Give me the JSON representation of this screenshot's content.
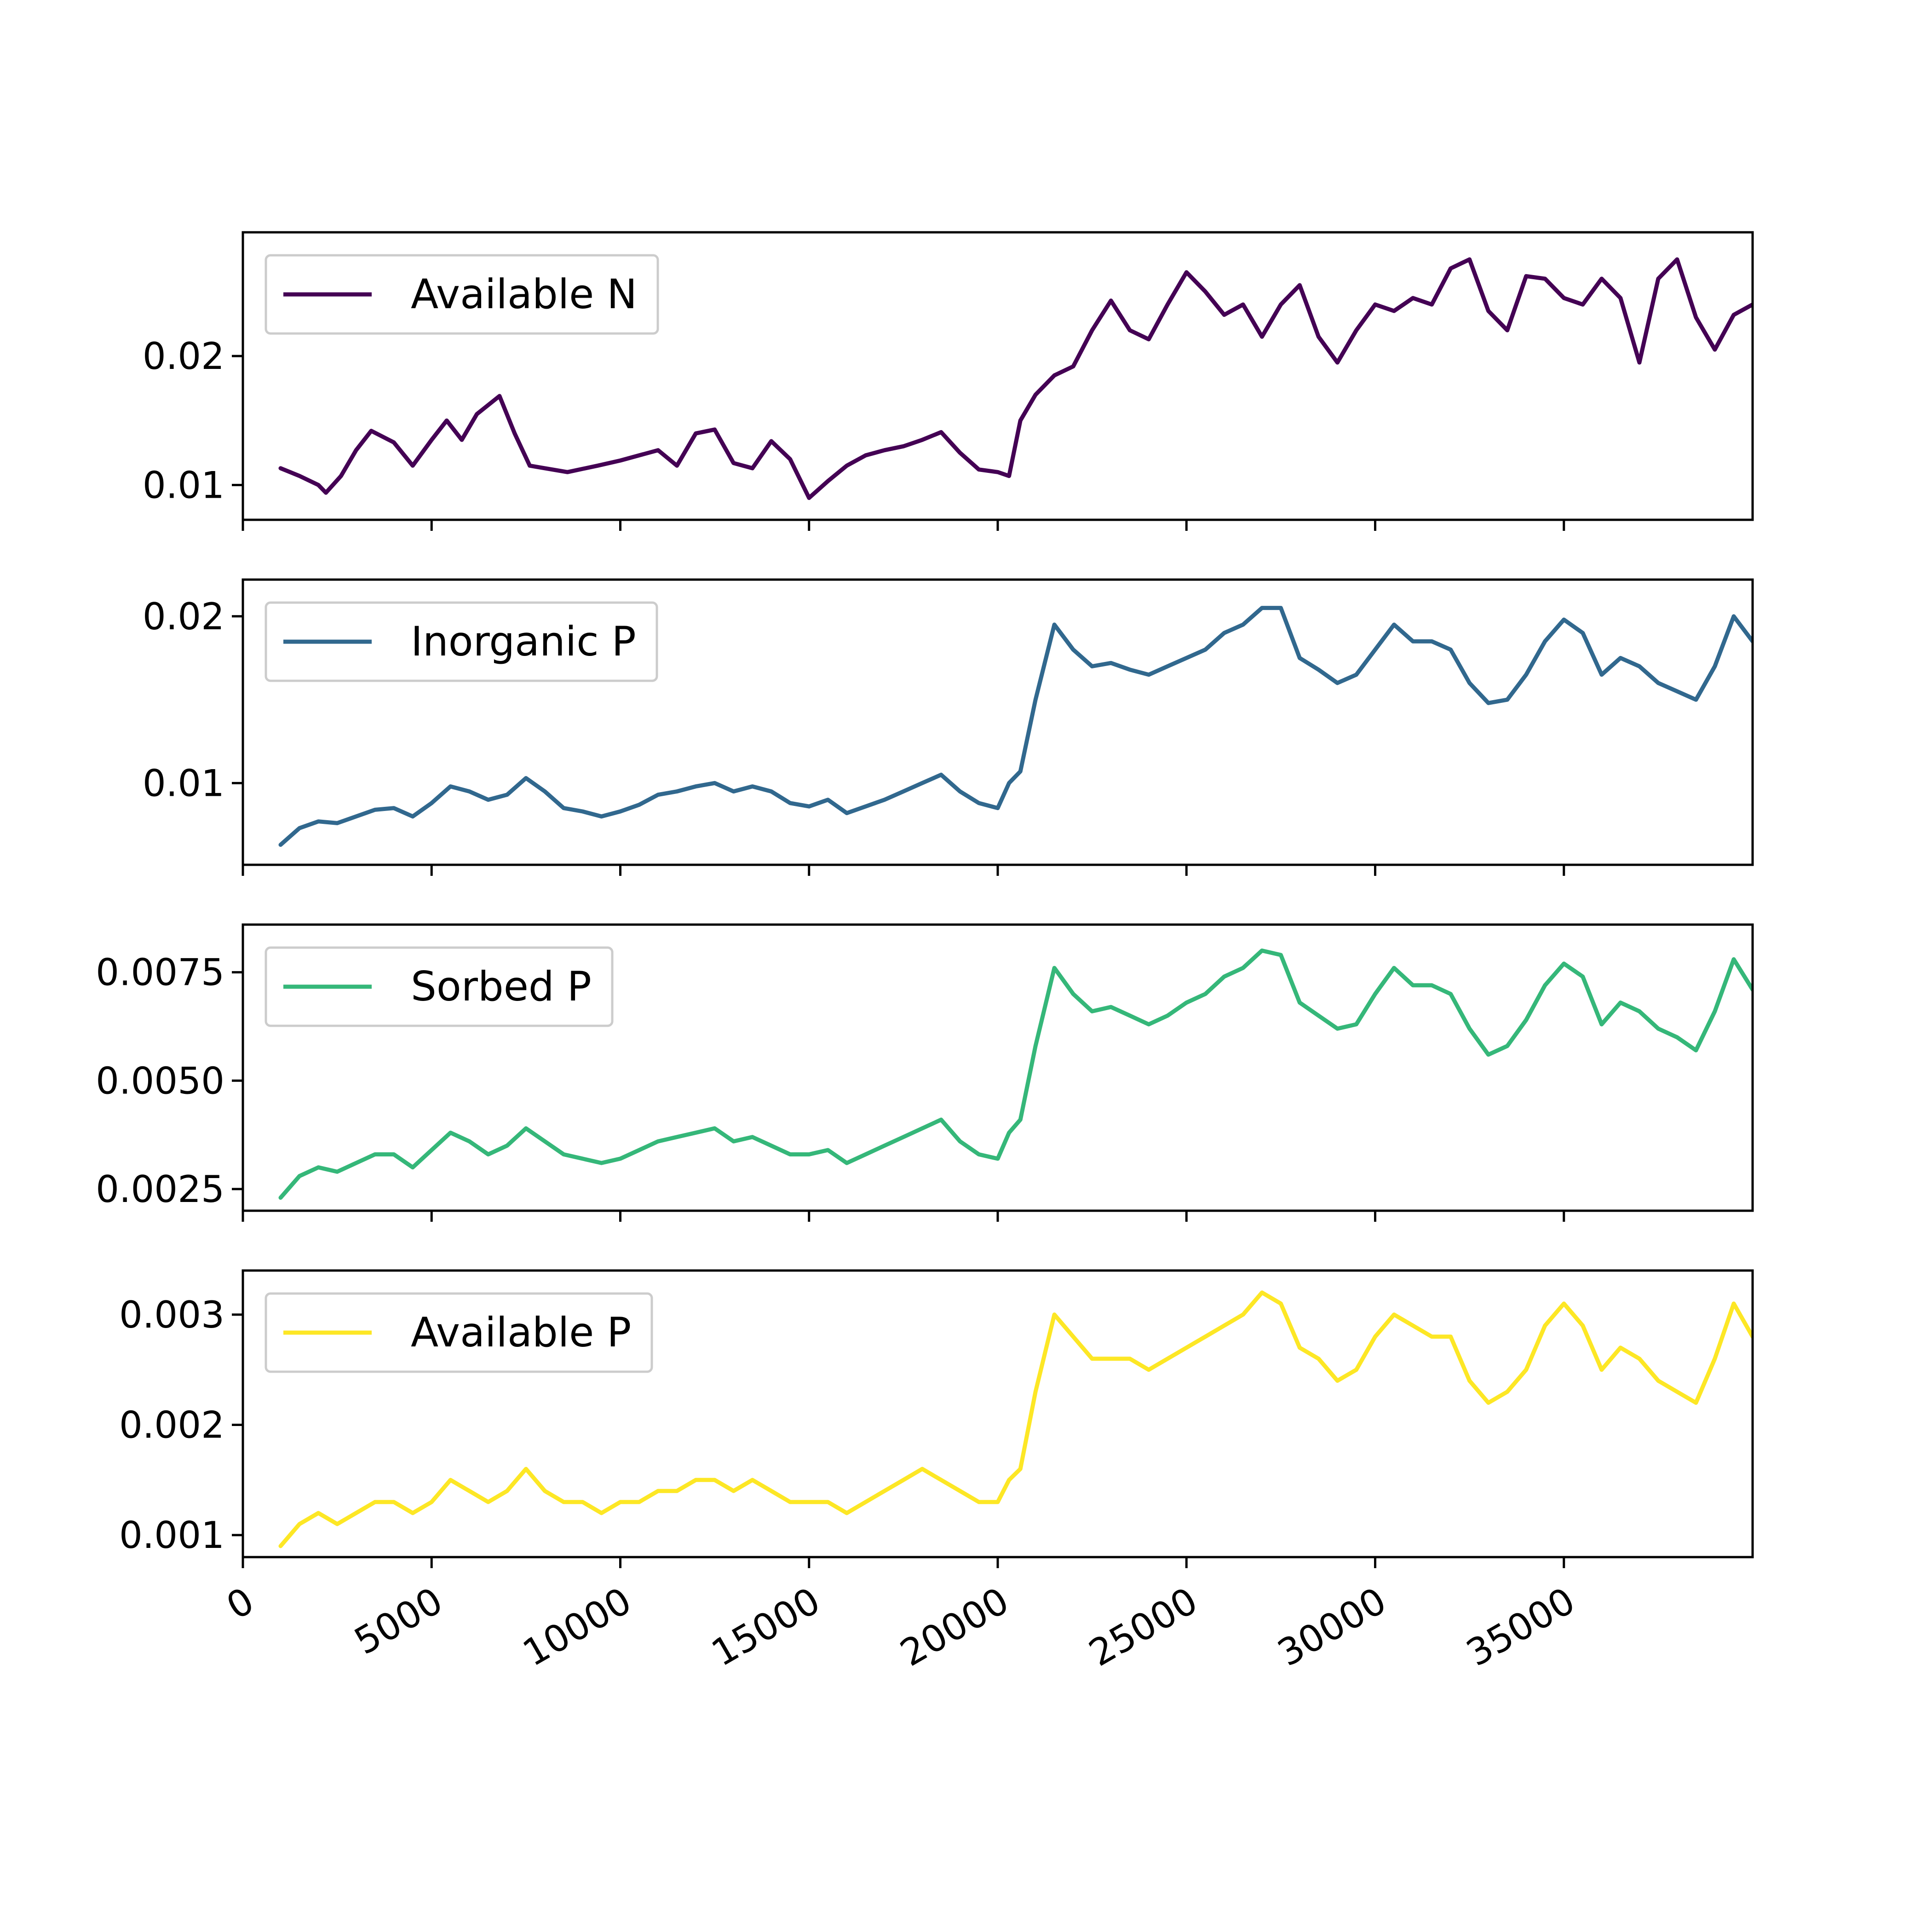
{
  "chart_data": [
    {
      "type": "line",
      "xlim": [
        0,
        40000
      ],
      "ylim": [
        0.0073,
        0.0296
      ],
      "yticks": [
        0.01,
        0.02
      ],
      "ytick_labels": [
        "0.01",
        "0.02"
      ],
      "series": [
        {
          "name": "Available N",
          "color": "#440154",
          "x": [
            1000,
            1500,
            2000,
            2200,
            2600,
            3000,
            3400,
            4000,
            4500,
            5000,
            5400,
            5800,
            6200,
            6800,
            7200,
            7600,
            8000,
            8600,
            9400,
            10000,
            10500,
            11000,
            11500,
            12000,
            12500,
            13000,
            13500,
            14000,
            14500,
            15000,
            15500,
            16000,
            16500,
            17000,
            17500,
            18000,
            18500,
            19000,
            19500,
            20000,
            20300,
            20600,
            21000,
            21500,
            22000,
            22500,
            23000,
            23500,
            24000,
            24500,
            25000,
            25500,
            26000,
            26500,
            27000,
            27500,
            28000,
            28500,
            29000,
            29500,
            30000,
            30500,
            31000,
            31500,
            32000,
            32500,
            33000,
            33500,
            34000,
            34500,
            35000,
            35500,
            36000,
            36500,
            37000,
            37500,
            38000,
            38500,
            39000,
            39500,
            40000
          ],
          "values": [
            0.0113,
            0.0107,
            0.01,
            0.0094,
            0.0107,
            0.0127,
            0.0142,
            0.0133,
            0.0115,
            0.0135,
            0.015,
            0.0135,
            0.0155,
            0.0169,
            0.014,
            0.0115,
            0.0113,
            0.011,
            0.0115,
            0.0119,
            0.0123,
            0.0127,
            0.0115,
            0.014,
            0.0143,
            0.0117,
            0.0113,
            0.0134,
            0.012,
            0.009,
            0.0103,
            0.0115,
            0.0123,
            0.0127,
            0.013,
            0.0135,
            0.0141,
            0.0125,
            0.0112,
            0.011,
            0.0107,
            0.015,
            0.017,
            0.0185,
            0.0192,
            0.022,
            0.0243,
            0.022,
            0.0213,
            0.024,
            0.0265,
            0.025,
            0.0232,
            0.024,
            0.0215,
            0.024,
            0.0255,
            0.0215,
            0.0195,
            0.022,
            0.024,
            0.0235,
            0.0245,
            0.024,
            0.0268,
            0.0275,
            0.0235,
            0.022,
            0.0262,
            0.026,
            0.0245,
            0.024,
            0.026,
            0.0245,
            0.0195,
            0.026,
            0.0275,
            0.023,
            0.0205,
            0.0232,
            0.024
          ]
        }
      ]
    },
    {
      "type": "line",
      "xlim": [
        0,
        40000
      ],
      "ylim": [
        0.0051,
        0.0222
      ],
      "yticks": [
        0.01,
        0.02
      ],
      "ytick_labels": [
        "0.01",
        "0.02"
      ],
      "series": [
        {
          "name": "Inorganic P",
          "color": "#31688e",
          "x": [
            1000,
            1500,
            2000,
            2500,
            3000,
            3500,
            4000,
            4500,
            5000,
            5500,
            6000,
            6500,
            7000,
            7500,
            8000,
            8500,
            9000,
            9500,
            10000,
            10500,
            11000,
            11500,
            12000,
            12500,
            13000,
            13500,
            14000,
            14500,
            15000,
            15500,
            16000,
            16500,
            17000,
            17500,
            18000,
            18500,
            19000,
            19500,
            20000,
            20300,
            20600,
            21000,
            21500,
            22000,
            22500,
            23000,
            23500,
            24000,
            24500,
            25000,
            25500,
            26000,
            26500,
            27000,
            27500,
            28000,
            28500,
            29000,
            29500,
            30000,
            30500,
            31000,
            31500,
            32000,
            32500,
            33000,
            33500,
            34000,
            34500,
            35000,
            35500,
            36000,
            36500,
            37000,
            37500,
            38000,
            38500,
            39000,
            39500,
            40000
          ],
          "values": [
            0.0063,
            0.0073,
            0.0077,
            0.0076,
            0.008,
            0.0084,
            0.0085,
            0.008,
            0.0088,
            0.0098,
            0.0095,
            0.009,
            0.0093,
            0.0103,
            0.0095,
            0.0085,
            0.0083,
            0.008,
            0.0083,
            0.0087,
            0.0093,
            0.0095,
            0.0098,
            0.01,
            0.0095,
            0.0098,
            0.0095,
            0.0088,
            0.0086,
            0.009,
            0.0082,
            0.0086,
            0.009,
            0.0095,
            0.01,
            0.0105,
            0.0095,
            0.0088,
            0.0085,
            0.01,
            0.0107,
            0.015,
            0.0195,
            0.018,
            0.017,
            0.0172,
            0.0168,
            0.0165,
            0.017,
            0.0175,
            0.018,
            0.019,
            0.0195,
            0.0205,
            0.0205,
            0.0175,
            0.0168,
            0.016,
            0.0165,
            0.018,
            0.0195,
            0.0185,
            0.0185,
            0.018,
            0.016,
            0.0148,
            0.015,
            0.0165,
            0.0185,
            0.0198,
            0.019,
            0.0165,
            0.0175,
            0.017,
            0.016,
            0.0155,
            0.015,
            0.017,
            0.02,
            0.0185
          ]
        }
      ]
    },
    {
      "type": "line",
      "xlim": [
        0,
        40000
      ],
      "ylim": [
        0.002,
        0.0086
      ],
      "yticks": [
        0.0025,
        0.005,
        0.0075
      ],
      "ytick_labels": [
        "0.0025",
        "0.0050",
        "0.0075"
      ],
      "series": [
        {
          "name": "Sorbed P",
          "color": "#35b779",
          "x": [
            1000,
            1500,
            2000,
            2500,
            3000,
            3500,
            4000,
            4500,
            5000,
            5500,
            6000,
            6500,
            7000,
            7500,
            8000,
            8500,
            9000,
            9500,
            10000,
            10500,
            11000,
            11500,
            12000,
            12500,
            13000,
            13500,
            14000,
            14500,
            15000,
            15500,
            16000,
            16500,
            17000,
            17500,
            18000,
            18500,
            19000,
            19500,
            20000,
            20300,
            20600,
            21000,
            21500,
            22000,
            22500,
            23000,
            23500,
            24000,
            24500,
            25000,
            25500,
            26000,
            26500,
            27000,
            27500,
            28000,
            28500,
            29000,
            29500,
            30000,
            30500,
            31000,
            31500,
            32000,
            32500,
            33000,
            33500,
            34000,
            34500,
            35000,
            35500,
            36000,
            36500,
            37000,
            37500,
            38000,
            38500,
            39000,
            39500,
            40000
          ],
          "values": [
            0.0023,
            0.0028,
            0.003,
            0.0029,
            0.0031,
            0.0033,
            0.0033,
            0.003,
            0.0034,
            0.0038,
            0.0036,
            0.0033,
            0.0035,
            0.0039,
            0.0036,
            0.0033,
            0.0032,
            0.0031,
            0.0032,
            0.0034,
            0.0036,
            0.0037,
            0.0038,
            0.0039,
            0.0036,
            0.0037,
            0.0035,
            0.0033,
            0.0033,
            0.0034,
            0.0031,
            0.0033,
            0.0035,
            0.0037,
            0.0039,
            0.0041,
            0.0036,
            0.0033,
            0.0032,
            0.0038,
            0.0041,
            0.0058,
            0.0076,
            0.007,
            0.0066,
            0.0067,
            0.0065,
            0.0063,
            0.0065,
            0.0068,
            0.007,
            0.0074,
            0.0076,
            0.008,
            0.0079,
            0.0068,
            0.0065,
            0.0062,
            0.0063,
            0.007,
            0.0076,
            0.0072,
            0.0072,
            0.007,
            0.0062,
            0.0056,
            0.0058,
            0.0064,
            0.0072,
            0.0077,
            0.0074,
            0.0063,
            0.0068,
            0.0066,
            0.0062,
            0.006,
            0.0057,
            0.0066,
            0.0078,
            0.0071
          ]
        }
      ]
    },
    {
      "type": "line",
      "xlim": [
        0,
        40000
      ],
      "ylim": [
        0.0008,
        0.0034
      ],
      "yticks": [
        0.001,
        0.002,
        0.003
      ],
      "ytick_labels": [
        "0.001",
        "0.002",
        "0.003"
      ],
      "xticks": [
        0,
        5000,
        10000,
        15000,
        20000,
        25000,
        30000,
        35000
      ],
      "xtick_labels": [
        "0",
        "5000",
        "10000",
        "15000",
        "20000",
        "25000",
        "30000",
        "35000"
      ],
      "series": [
        {
          "name": "Available P",
          "color": "#fde725",
          "x": [
            1000,
            1500,
            2000,
            2500,
            3000,
            3500,
            4000,
            4500,
            5000,
            5500,
            6000,
            6500,
            7000,
            7500,
            8000,
            8500,
            9000,
            9500,
            10000,
            10500,
            11000,
            11500,
            12000,
            12500,
            13000,
            13500,
            14000,
            14500,
            15000,
            15500,
            16000,
            16500,
            17000,
            17500,
            18000,
            18500,
            19000,
            19500,
            20000,
            20300,
            20600,
            21000,
            21500,
            22000,
            22500,
            23000,
            23500,
            24000,
            24500,
            25000,
            25500,
            26000,
            26500,
            27000,
            27500,
            28000,
            28500,
            29000,
            29500,
            30000,
            30500,
            31000,
            31500,
            32000,
            32500,
            33000,
            33500,
            34000,
            34500,
            35000,
            35500,
            36000,
            36500,
            37000,
            37500,
            38000,
            38500,
            39000,
            39500,
            40000
          ],
          "values": [
            0.0009,
            0.0011,
            0.0012,
            0.0011,
            0.0012,
            0.0013,
            0.0013,
            0.0012,
            0.0013,
            0.0015,
            0.0014,
            0.0013,
            0.0014,
            0.0016,
            0.0014,
            0.0013,
            0.0013,
            0.0012,
            0.0013,
            0.0013,
            0.0014,
            0.0014,
            0.0015,
            0.0015,
            0.0014,
            0.0015,
            0.0014,
            0.0013,
            0.0013,
            0.0013,
            0.0012,
            0.0013,
            0.0014,
            0.0015,
            0.0016,
            0.0015,
            0.0014,
            0.0013,
            0.0013,
            0.0015,
            0.0016,
            0.0023,
            0.003,
            0.0028,
            0.0026,
            0.0026,
            0.0026,
            0.0025,
            0.0026,
            0.0027,
            0.0028,
            0.0029,
            0.003,
            0.0032,
            0.0031,
            0.0027,
            0.0026,
            0.0024,
            0.0025,
            0.0028,
            0.003,
            0.0029,
            0.0028,
            0.0028,
            0.0024,
            0.0022,
            0.0023,
            0.0025,
            0.0029,
            0.0031,
            0.0029,
            0.0025,
            0.0027,
            0.0026,
            0.0024,
            0.0023,
            0.0022,
            0.0026,
            0.0031,
            0.0028
          ]
        }
      ]
    }
  ]
}
